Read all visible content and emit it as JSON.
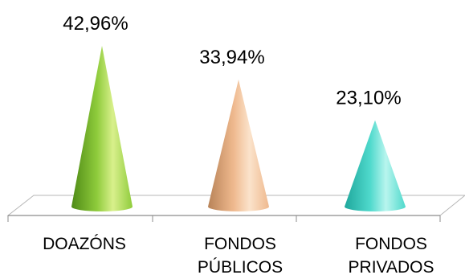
{
  "chart_data": {
    "type": "bar",
    "bar_shape": "cone",
    "categories": [
      "DOAZÓNS",
      "FONDOS\nPÚBLICOS",
      "FONDOS\nPRIVADOS"
    ],
    "values": [
      42.96,
      33.94,
      23.1
    ],
    "value_labels": [
      "42,96%",
      "33,94%",
      "23,10%"
    ],
    "unit": "%",
    "title": "",
    "xlabel": "",
    "ylabel": "",
    "grid": false,
    "legend": "none",
    "colors": [
      "#8fcc3c",
      "#efb98e",
      "#4fd9cc"
    ],
    "colors_light": [
      "#d9f08c",
      "#fbe3cb",
      "#b8f5ee"
    ],
    "colors_dark": [
      "#4e8a16",
      "#b88358",
      "#1fa79c"
    ]
  }
}
